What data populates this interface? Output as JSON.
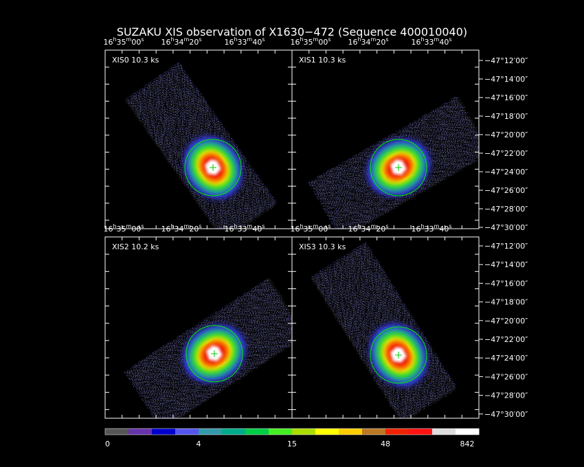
{
  "header": {
    "title": "SUZAKU XIS observation of X1630−472  (Sequence 400010040)"
  },
  "panels": [
    {
      "label": "XIS0 10.3 ks"
    },
    {
      "label": "XIS1 10.3 ks"
    },
    {
      "label": "XIS2 10.2 ks"
    },
    {
      "label": "XIS3 10.3 ks"
    }
  ],
  "ra_ticks": [
    "16h35m00s",
    "16h34m20s",
    "16h33m40s"
  ],
  "dec_ticks": [
    "−47°12′00″",
    "−47°14′00″",
    "−47°16′00″",
    "−47°18′00″",
    "−47°20′00″",
    "−47°22′00″",
    "−47°24′00″",
    "−47°26′00″",
    "−47°28′00″",
    "−47°30′00″"
  ],
  "colorbar": {
    "colors": [
      "#555555",
      "#6633aa",
      "#0000cc",
      "#5555ee",
      "#3399aa",
      "#00aa88",
      "#00cc44",
      "#44ee22",
      "#aadd00",
      "#ffff00",
      "#ffcc00",
      "#bb7722",
      "#ee2200",
      "#ff1111",
      "#dddddd",
      "#ffffff"
    ],
    "labels": [
      "0",
      "4",
      "15",
      "48",
      "842"
    ]
  }
}
